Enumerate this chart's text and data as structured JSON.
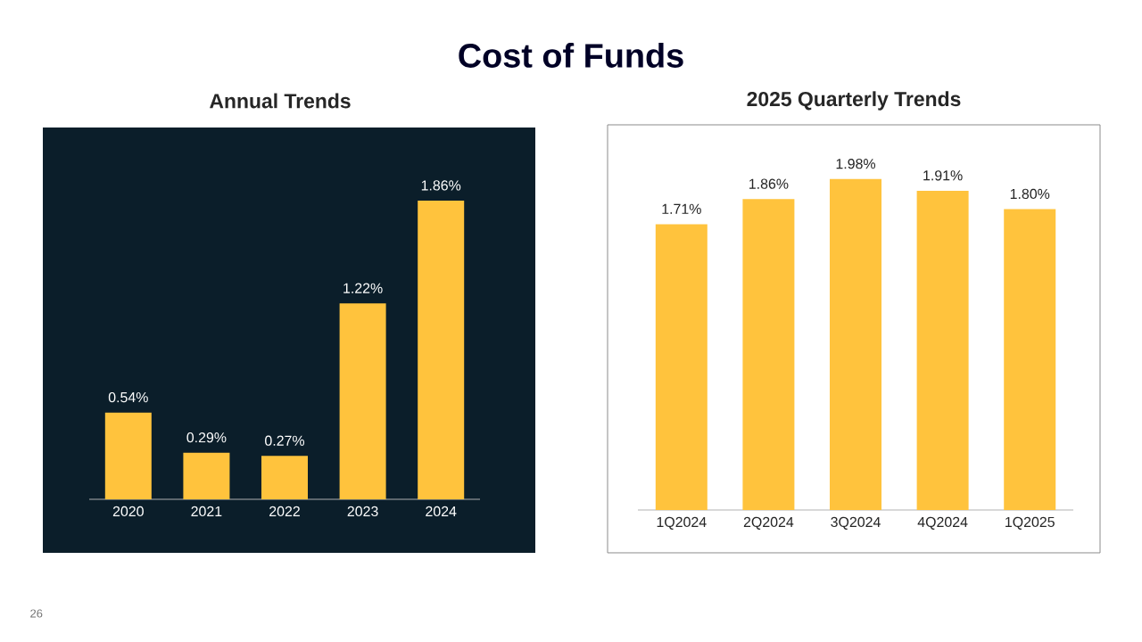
{
  "chart_data": [
    {
      "type": "bar",
      "title": "Cost of Funds",
      "subtitle": "Annual Trends",
      "categories": [
        "2020",
        "2021",
        "2022",
        "2023",
        "2024"
      ],
      "values": [
        0.54,
        0.29,
        0.27,
        1.22,
        1.86
      ],
      "value_labels": [
        "0.54%",
        "0.29%",
        "0.27%",
        "1.22%",
        "1.86%"
      ],
      "color": "#ffc33d",
      "tick_labels": "x",
      "annotations": [
        "26"
      ]
    },
    {
      "type": "bar",
      "title": "2025 Quarterly Trends",
      "categories": [
        "1Q2024",
        "2Q2024",
        "3Q2024",
        "4Q2024",
        "1Q2025"
      ],
      "values": [
        1.71,
        1.86,
        1.98,
        1.91,
        1.8
      ],
      "value_labels": [
        "1.71%",
        "1.86%",
        "1.98%",
        "1.91%",
        "1.80%"
      ],
      "color": "#ffc33d",
      "tick_labels": "x"
    }
  ]
}
